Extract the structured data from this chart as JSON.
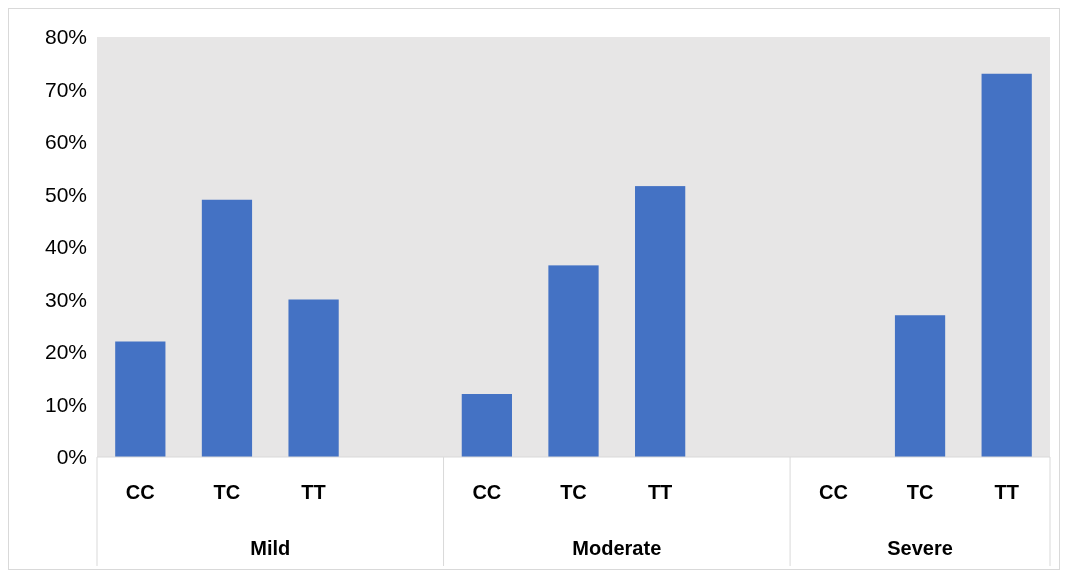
{
  "chart_data": {
    "type": "bar",
    "categories": [
      "CC",
      "TC",
      "TT",
      null,
      "CC",
      "TC",
      "TT",
      null,
      "CC",
      "TC",
      "TT"
    ],
    "values": [
      22,
      49,
      30,
      null,
      12,
      36.5,
      51.6,
      null,
      0,
      27,
      73
    ],
    "color": "#4472c4",
    "ylim": [
      0,
      80
    ],
    "yticks": [
      {
        "value": 0,
        "label": "0%"
      },
      {
        "value": 10,
        "label": "10%"
      },
      {
        "value": 20,
        "label": "20%"
      },
      {
        "value": 30,
        "label": "30%"
      },
      {
        "value": 40,
        "label": "40%"
      },
      {
        "value": 50,
        "label": "50%"
      },
      {
        "value": 60,
        "label": "60%"
      },
      {
        "value": 70,
        "label": "70%"
      },
      {
        "value": 80,
        "label": "80%"
      }
    ],
    "annotations": [
      "Mild",
      "Moderate",
      "Severe"
    ]
  }
}
